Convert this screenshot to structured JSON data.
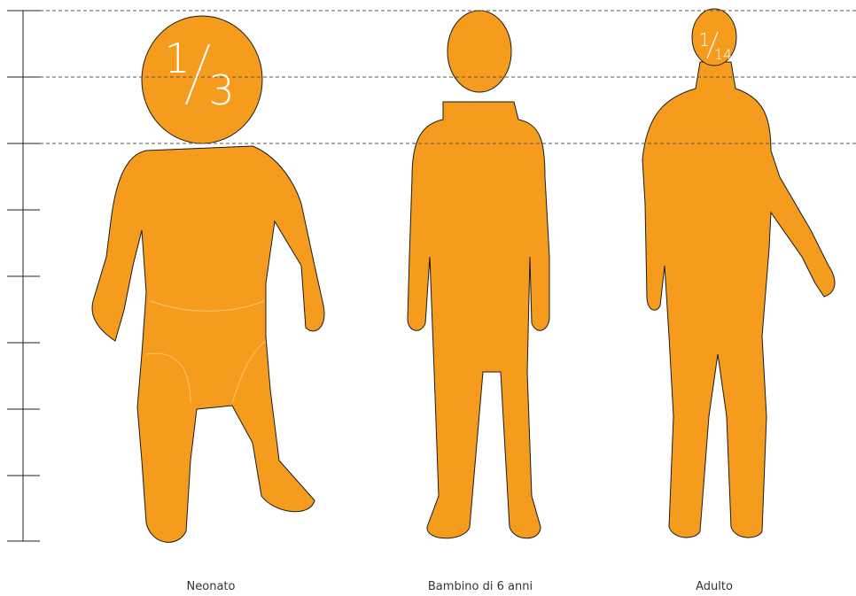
{
  "figures": [
    {
      "label": "Neonato",
      "fraction": {
        "numerator": "1",
        "denominator": "3"
      }
    },
    {
      "label": "Bambino di 6 anni"
    },
    {
      "label": "Adulto",
      "fraction": {
        "numerator": "1",
        "denominator": "14"
      }
    }
  ]
}
